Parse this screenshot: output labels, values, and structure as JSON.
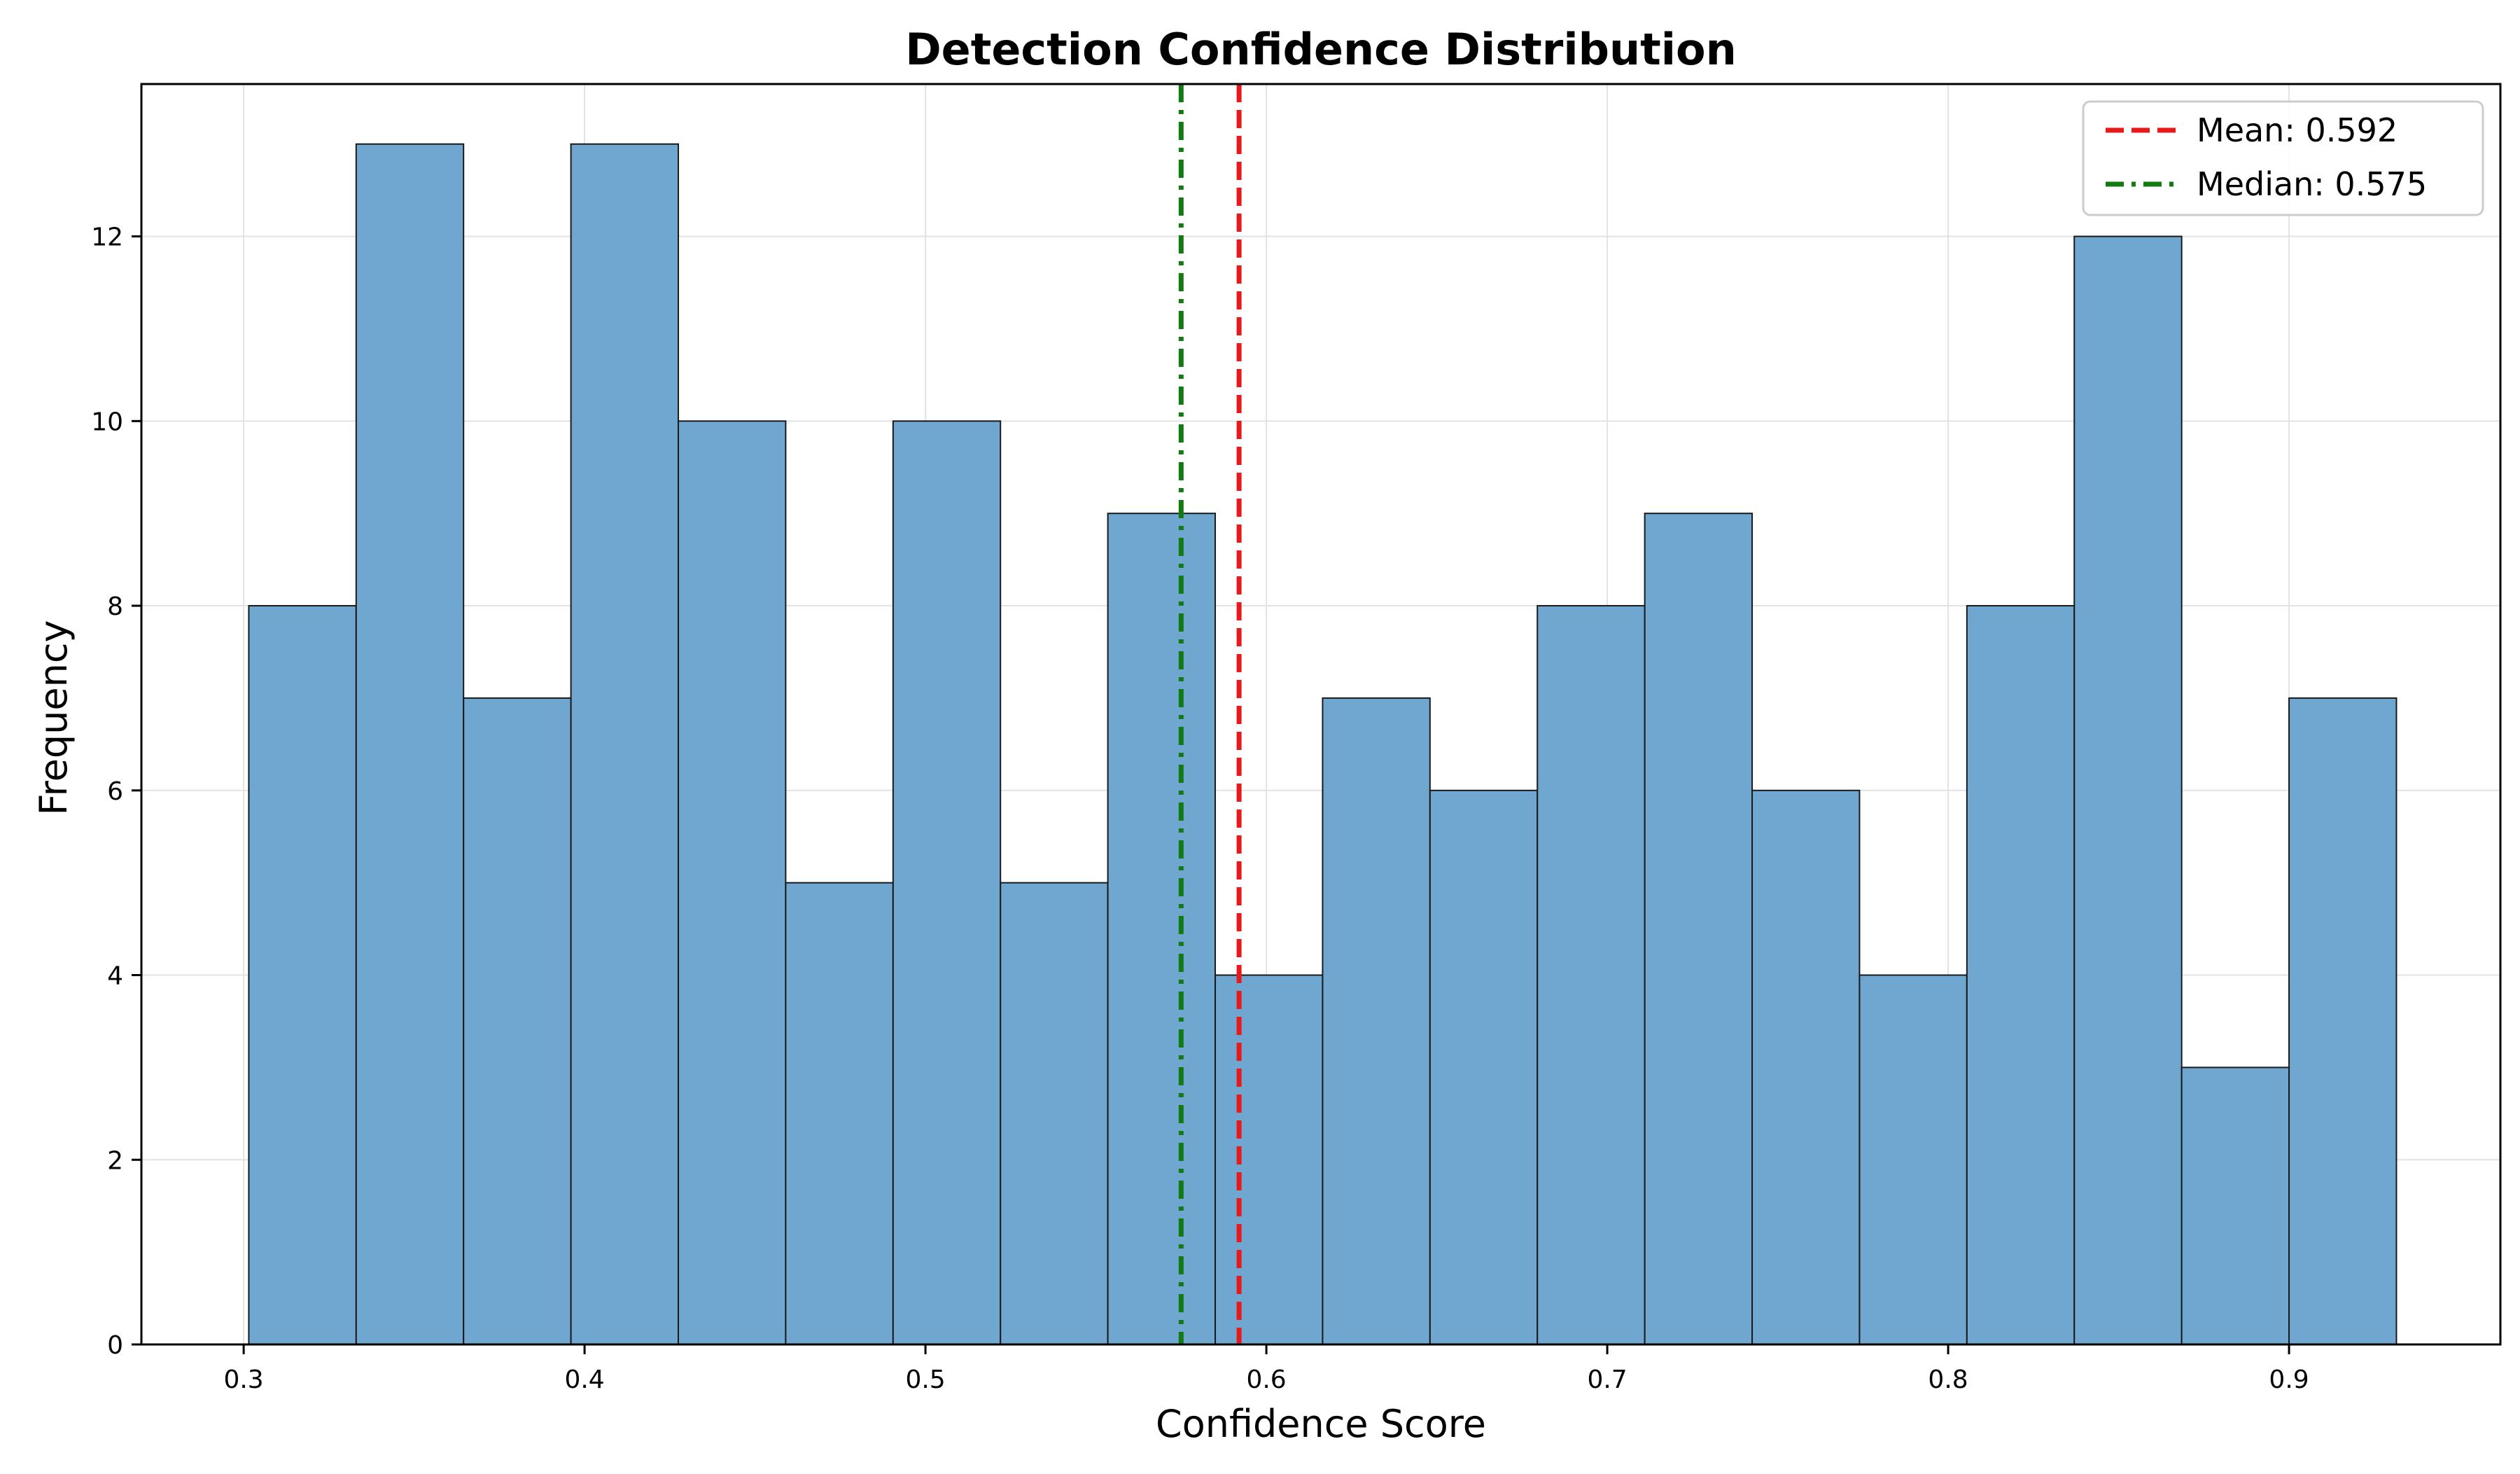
{
  "chart_data": {
    "type": "bar",
    "title": "Detection Confidence Distribution",
    "xlabel": "Confidence Score",
    "ylabel": "Frequency",
    "xlim": [
      0.27,
      0.962
    ],
    "ylim": [
      0,
      13.65
    ],
    "x_ticks": [
      0.3,
      0.4,
      0.5,
      0.6,
      0.7,
      0.8,
      0.9
    ],
    "x_tick_labels": [
      "0.3",
      "0.4",
      "0.5",
      "0.6",
      "0.7",
      "0.8",
      "0.9"
    ],
    "y_ticks": [
      0,
      2,
      4,
      6,
      8,
      10,
      12
    ],
    "y_tick_labels": [
      "0",
      "2",
      "4",
      "6",
      "8",
      "10",
      "12"
    ],
    "bin_edges": [
      0.3015,
      0.333,
      0.3645,
      0.396,
      0.4275,
      0.459,
      0.4905,
      0.522,
      0.5535,
      0.585,
      0.6165,
      0.648,
      0.6795,
      0.711,
      0.7425,
      0.774,
      0.8055,
      0.837,
      0.8685,
      0.9,
      0.9315
    ],
    "values": [
      8,
      13,
      7,
      13,
      10,
      5,
      10,
      5,
      9,
      4,
      7,
      6,
      8,
      9,
      6,
      4,
      8,
      12,
      3,
      7
    ],
    "grid": true,
    "legend_position": "top-right",
    "bar_color": "#6fa7d0",
    "bar_edge_color": "#1a1a1a",
    "reference_lines": [
      {
        "label": "Mean: 0.592",
        "x": 0.592,
        "color": "#e8191a",
        "style": "dashed"
      },
      {
        "label": "Median: 0.575",
        "x": 0.575,
        "color": "#117a11",
        "style": "dashdot"
      }
    ]
  }
}
